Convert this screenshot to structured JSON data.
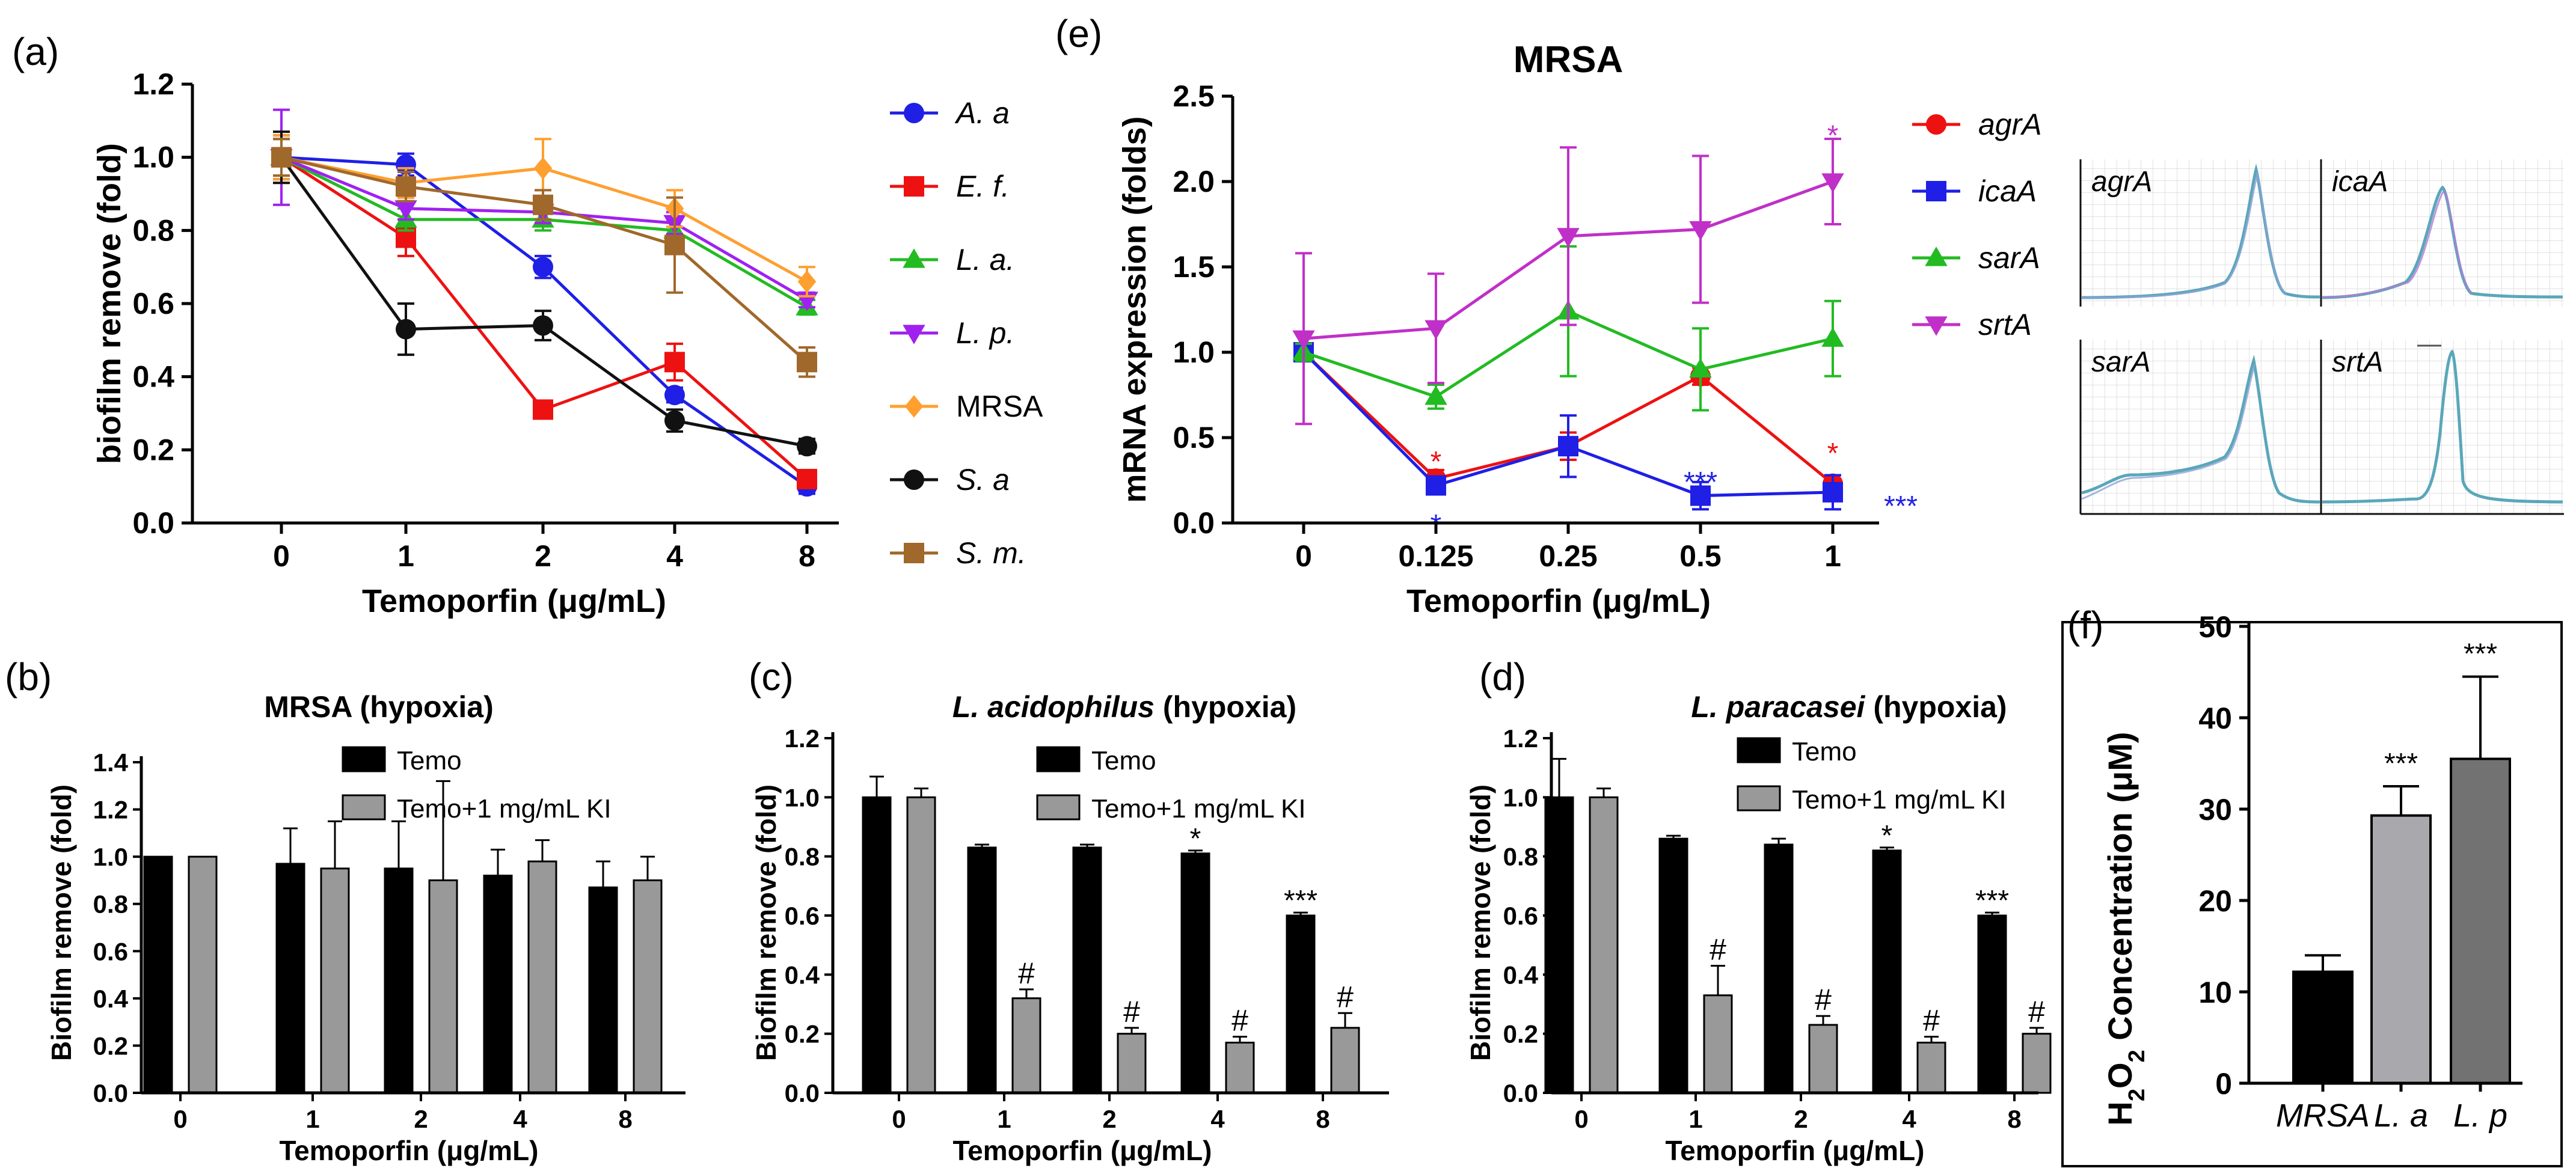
{
  "chart_data": [
    {
      "id": "a",
      "panel_label": "(a)",
      "type": "line",
      "x": [
        "0",
        "1",
        "2",
        "4",
        "8"
      ],
      "xlabel": "Temoporfin (μg/mL)",
      "ylabel": "biofilm remove (fold)",
      "ylim": [
        0,
        1.2
      ],
      "yticks": [
        "0.0",
        "0.2",
        "0.4",
        "0.6",
        "0.8",
        "1.0",
        "1.2"
      ],
      "series": [
        {
          "name": "A. a",
          "italic": true,
          "color": "#1f1fe6",
          "marker": "circle-open",
          "values": [
            1.0,
            0.98,
            0.7,
            0.35,
            0.1
          ],
          "errors": [
            0.06,
            0.03,
            0.03,
            0.02,
            0.02
          ]
        },
        {
          "name": "E. f.",
          "italic": true,
          "color": "#ee1111",
          "marker": "square",
          "values": [
            1.0,
            0.78,
            0.31,
            0.44,
            0.12
          ],
          "errors": [
            0.06,
            0.05,
            0.02,
            0.05,
            0.02
          ]
        },
        {
          "name": "L. a.",
          "italic": true,
          "color": "#22bb22",
          "marker": "triangle-up",
          "values": [
            1.0,
            0.83,
            0.83,
            0.8,
            0.59
          ],
          "errors": [
            0.05,
            0.03,
            0.03,
            0.03,
            0.02
          ]
        },
        {
          "name": "L. p.",
          "italic": true,
          "color": "#a020f0",
          "marker": "triangle-down",
          "values": [
            1.0,
            0.86,
            0.85,
            0.82,
            0.61
          ],
          "errors": [
            0.13,
            0.03,
            0.03,
            0.03,
            0.02
          ]
        },
        {
          "name": "MRSA",
          "italic": false,
          "color": "#ff9f30",
          "marker": "diamond",
          "values": [
            1.0,
            0.93,
            0.97,
            0.86,
            0.66
          ],
          "errors": [
            0.06,
            0.04,
            0.08,
            0.05,
            0.04
          ]
        },
        {
          "name": "S. a",
          "italic": true,
          "color": "#111111",
          "marker": "circle",
          "values": [
            1.0,
            0.53,
            0.54,
            0.28,
            0.21
          ],
          "errors": [
            0.07,
            0.07,
            0.04,
            0.03,
            0.02
          ]
        },
        {
          "name": "S. m.",
          "italic": true,
          "color": "#a0682a",
          "marker": "square",
          "values": [
            1.0,
            0.92,
            0.87,
            0.76,
            0.44
          ],
          "errors": [
            0.05,
            0.04,
            0.04,
            0.13,
            0.04
          ]
        }
      ]
    },
    {
      "id": "e",
      "panel_label": "(e)",
      "type": "line",
      "title": "MRSA",
      "x": [
        "0",
        "0.125",
        "0.25",
        "0.5",
        "1"
      ],
      "xlabel": "Temoporfin (μg/mL)",
      "ylabel": "mRNA expression (folds)",
      "ylim": [
        0,
        2.5
      ],
      "yticks": [
        "0.0",
        "0.5",
        "1.0",
        "1.5",
        "2.0",
        "2.5"
      ],
      "series": [
        {
          "name": "agrA",
          "italic": true,
          "color": "#ee1111",
          "marker": "circle",
          "values": [
            1.0,
            0.26,
            0.45,
            0.86,
            0.23
          ],
          "errors": [
            0.05,
            0.05,
            0.08,
            0.05,
            0.05
          ]
        },
        {
          "name": "icaA",
          "italic": true,
          "color": "#1f1fe6",
          "marker": "square",
          "values": [
            1.0,
            0.22,
            0.45,
            0.16,
            0.18
          ],
          "errors": [
            0.05,
            0.05,
            0.18,
            0.08,
            0.1
          ]
        },
        {
          "name": "sarA",
          "italic": true,
          "color": "#22bb22",
          "marker": "triangle-up",
          "values": [
            1.0,
            0.74,
            1.24,
            0.9,
            1.08
          ],
          "errors": [
            0.05,
            0.07,
            0.38,
            0.24,
            0.22
          ]
        },
        {
          "name": "srtA",
          "italic": true,
          "color": "#c030c8",
          "marker": "triangle-down",
          "values": [
            1.08,
            1.14,
            1.68,
            1.72,
            2.0
          ],
          "errors": [
            0.5,
            0.32,
            0.52,
            0.43,
            0.25
          ]
        }
      ],
      "annotations": [
        {
          "text": "*",
          "color": "#ee1111",
          "x": "0.125",
          "y": 0.38
        },
        {
          "text": "*",
          "color": "#1f1fe6",
          "x": "0.125",
          "y": 0.01
        },
        {
          "text": "***",
          "color": "#1f1fe6",
          "x": "0.5",
          "y": 0.26
        },
        {
          "text": "*",
          "color": "#ee1111",
          "x": "1",
          "y": 0.43
        },
        {
          "text": "***",
          "color": "#1f1fe6",
          "x": "1",
          "y": 0.12,
          "side": "right"
        },
        {
          "text": "*",
          "color": "#c030c8",
          "x": "1",
          "y": 2.29
        }
      ],
      "melt_curves": [
        "agrA",
        "icaA",
        "sarA",
        "srtA"
      ]
    },
    {
      "id": "b",
      "panel_label": "(b)",
      "type": "bar",
      "title": "MRSA (hypoxia)",
      "categories": [
        "0",
        "1",
        "2",
        "4",
        "8"
      ],
      "xlabel": "Temoporfin (μg/mL)",
      "ylabel": "Biofilm remove (fold)",
      "ylim": [
        0,
        1.4
      ],
      "yticks": [
        "0.0",
        "0.2",
        "0.4",
        "0.6",
        "0.8",
        "1.0",
        "1.2",
        "1.4"
      ],
      "series": [
        {
          "name": "Temo",
          "color": "#000000",
          "values": [
            1.0,
            0.97,
            0.95,
            0.92,
            0.87
          ],
          "errors": [
            0,
            0.15,
            0.2,
            0.11,
            0.11
          ]
        },
        {
          "name": "Temo+1 mg/mL KI",
          "color": "#999999",
          "values": [
            1.0,
            0.95,
            0.9,
            0.98,
            0.9
          ],
          "errors": [
            0,
            0.2,
            0.42,
            0.09,
            0.1
          ]
        }
      ],
      "marks": []
    },
    {
      "id": "c",
      "panel_label": "(c)",
      "type": "bar",
      "title_italic": "L. acidophilus",
      "title_rest": " (hypoxia)",
      "categories": [
        "0",
        "1",
        "2",
        "4",
        "8"
      ],
      "xlabel": "Temoporfin (μg/mL)",
      "ylabel": "Biofilm remove (fold)",
      "ylim": [
        0,
        1.2
      ],
      "yticks": [
        "0.0",
        "0.2",
        "0.4",
        "0.6",
        "0.8",
        "1.0",
        "1.2"
      ],
      "series": [
        {
          "name": "Temo",
          "color": "#000000",
          "values": [
            1.0,
            0.83,
            0.83,
            0.81,
            0.6
          ],
          "errors": [
            0.07,
            0.01,
            0.01,
            0.01,
            0.01
          ]
        },
        {
          "name": "Temo+1 mg/mL KI",
          "color": "#999999",
          "values": [
            1.0,
            0.32,
            0.2,
            0.17,
            0.22
          ],
          "errors": [
            0.03,
            0.03,
            0.02,
            0.02,
            0.05
          ]
        }
      ],
      "marks": [
        {
          "text": "*",
          "series": 0,
          "index": 3
        },
        {
          "text": "***",
          "series": 0,
          "index": 4
        },
        {
          "text": "#",
          "series": 1,
          "index": 1
        },
        {
          "text": "#",
          "series": 1,
          "index": 2
        },
        {
          "text": "#",
          "series": 1,
          "index": 3
        },
        {
          "text": "#",
          "series": 1,
          "index": 4
        }
      ]
    },
    {
      "id": "d",
      "panel_label": "(d)",
      "type": "bar",
      "title_italic": "L. paracasei",
      "title_rest": " (hypoxia)",
      "categories": [
        "0",
        "1",
        "2",
        "4",
        "8"
      ],
      "xlabel": "Temoporfin (μg/mL)",
      "ylabel": "Biofilm remove (fold)",
      "ylim": [
        0,
        1.2
      ],
      "yticks": [
        "0.0",
        "0.2",
        "0.4",
        "0.6",
        "0.8",
        "1.0",
        "1.2"
      ],
      "series": [
        {
          "name": "Temo",
          "color": "#000000",
          "values": [
            1.0,
            0.86,
            0.84,
            0.82,
            0.6
          ],
          "errors": [
            0.13,
            0.01,
            0.02,
            0.01,
            0.01
          ]
        },
        {
          "name": "Temo+1 mg/mL KI",
          "color": "#999999",
          "values": [
            1.0,
            0.33,
            0.23,
            0.17,
            0.2
          ],
          "errors": [
            0.03,
            0.1,
            0.03,
            0.02,
            0.02
          ]
        }
      ],
      "marks": [
        {
          "text": "*",
          "series": 0,
          "index": 3
        },
        {
          "text": "***",
          "series": 0,
          "index": 4
        },
        {
          "text": "#",
          "series": 1,
          "index": 1
        },
        {
          "text": "#",
          "series": 1,
          "index": 2
        },
        {
          "text": "#",
          "series": 1,
          "index": 3
        },
        {
          "text": "#",
          "series": 1,
          "index": 4
        }
      ]
    },
    {
      "id": "f",
      "panel_label": "(f)",
      "type": "bar",
      "categories": [
        "MRSA",
        "L. a",
        "L. p"
      ],
      "values": [
        12.2,
        29.3,
        35.5
      ],
      "errors": [
        1.8,
        3.2,
        9.0
      ],
      "colors": [
        "#000000",
        "#a8a8ad",
        "#727272"
      ],
      "marks": [
        "",
        "***",
        "***"
      ],
      "ylabel_prefix": "H",
      "ylabel_sub1": "2",
      "ylabel_mid": "O",
      "ylabel_sub2": "2",
      "ylabel_suffix": " Concentration (μM)",
      "ylim": [
        0,
        50
      ],
      "yticks": [
        "0",
        "10",
        "20",
        "30",
        "40",
        "50"
      ]
    }
  ]
}
